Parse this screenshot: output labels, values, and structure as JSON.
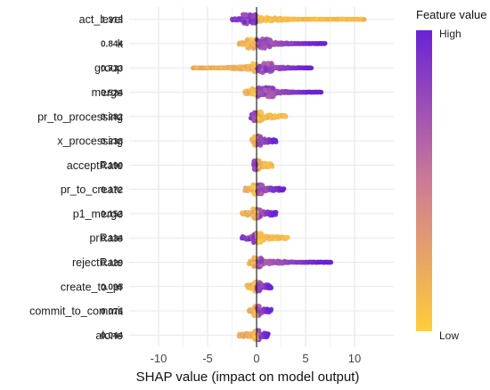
{
  "chart_data": {
    "type": "scatter",
    "subtype": "shap-beeswarm",
    "xlabel": "SHAP value (impact on model output)",
    "xlim": [
      -13,
      14
    ],
    "xticks": [
      -10,
      -5,
      0,
      5,
      10
    ],
    "grid": true,
    "legend": {
      "title": "Feature value",
      "high_label": "High",
      "low_label": "Low",
      "placement": "right",
      "high_color": "#6a22d6",
      "low_color": "#ffcd3a"
    },
    "features": [
      {
        "name": "act_level",
        "mean_abs_shap": "1.313",
        "min": -2.5,
        "max": 11.0,
        "low_side": "right",
        "core": [
          -1.4,
          0.0
        ]
      },
      {
        "name": "k",
        "mean_abs_shap": "0.844",
        "min": -1.8,
        "max": 7.0,
        "low_side": "left",
        "core": [
          -1.0,
          1.5
        ]
      },
      {
        "name": "group",
        "mean_abs_shap": "0.733",
        "min": -6.5,
        "max": 5.6,
        "low_side": "left",
        "core": [
          -0.4,
          1.6
        ]
      },
      {
        "name": "merge",
        "mean_abs_shap": "0.524",
        "min": -1.2,
        "max": 6.6,
        "low_side": "left",
        "core": [
          -0.6,
          1.8
        ]
      },
      {
        "name": "pr_to_processing",
        "mean_abs_shap": "0.282",
        "min": -0.6,
        "max": 3.0,
        "low_side": "right",
        "core": [
          -0.3,
          0.6
        ]
      },
      {
        "name": "x_processing",
        "mean_abs_shap": "0.238",
        "min": -0.5,
        "max": 2.0,
        "low_side": "left",
        "core": [
          -0.3,
          0.5
        ]
      },
      {
        "name": "acceptRate",
        "mean_abs_shap": "0.190",
        "min": -0.3,
        "max": 1.6,
        "low_side": "right",
        "core": [
          -0.3,
          0.3
        ]
      },
      {
        "name": "pr_to_create",
        "mean_abs_shap": "0.172",
        "min": -1.2,
        "max": 2.8,
        "low_side": "left",
        "core": [
          -0.4,
          0.6
        ]
      },
      {
        "name": "p1_merge",
        "mean_abs_shap": "0.153",
        "min": -1.5,
        "max": 2.0,
        "low_side": "left",
        "core": [
          -0.4,
          0.5
        ]
      },
      {
        "name": "prRate",
        "mean_abs_shap": "0.134",
        "min": -1.5,
        "max": 3.2,
        "low_side": "right",
        "core": [
          -0.3,
          0.5
        ]
      },
      {
        "name": "rejectRate",
        "mean_abs_shap": "0.129",
        "min": -0.8,
        "max": 7.6,
        "low_side": "left",
        "core": [
          -0.3,
          0.5
        ]
      },
      {
        "name": "create_to_pr",
        "mean_abs_shap": "0.095",
        "min": -1.0,
        "max": 1.5,
        "low_side": "left",
        "core": [
          -0.3,
          0.4
        ]
      },
      {
        "name": "commit_to_commit",
        "mean_abs_shap": "0.076",
        "min": -0.8,
        "max": 1.5,
        "low_side": "left",
        "core": [
          -0.3,
          0.3
        ]
      },
      {
        "name": "alone",
        "mean_abs_shap": "0.044",
        "min": -1.8,
        "max": 1.2,
        "low_side": "left",
        "core": [
          -0.2,
          0.3
        ]
      }
    ]
  }
}
